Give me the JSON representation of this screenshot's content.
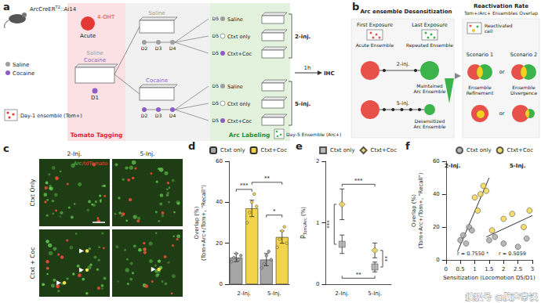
{
  "panels": {
    "a": {
      "letter": "a",
      "mouse": {
        "name": "ArcCreER",
        "superscript": "T2",
        "suffix": "::Ai14"
      },
      "drug": "4-OHT",
      "drug_note": "Acute",
      "legend": [
        {
          "label": "Saline",
          "color": "#9e9e9e"
        },
        {
          "label": "Cocaine",
          "color": "#8e5ec7"
        }
      ],
      "day1": {
        "day": "D1",
        "treatments": [
          "Saline",
          "Cocaine"
        ],
        "injection": "Cocaine"
      },
      "branches": [
        {
          "treatment": "Saline",
          "days": [
            "D2",
            "D3",
            "D4"
          ],
          "test_day": "D5",
          "group": "2-inj.",
          "tests": [
            {
              "label": "Saline",
              "injection": "Saline"
            },
            {
              "label": "Ctxt only",
              "injection": null
            },
            {
              "label": "Ctxt+Coc",
              "injection": "Cocaine"
            }
          ]
        },
        {
          "treatment": "Cocaine",
          "days": [
            "D2",
            "D3",
            "D4"
          ],
          "test_day": "D5",
          "group": "5-inj.",
          "tests": [
            {
              "label": "Saline",
              "injection": "Saline"
            },
            {
              "label": "Ctxt only",
              "injection": null
            },
            {
              "label": "Ctxt+Coc",
              "injection": "Cocaine"
            }
          ]
        }
      ],
      "delay": "1h",
      "assay": "IHC",
      "tagging": "Tomato Tagging",
      "labeling": "Arc Labeling",
      "day1_ensemble": "Day-1 ensemble (Tom+)",
      "day5_ensemble": "Day-5 Ensemble (Arc+)"
    },
    "b": {
      "letter": "b",
      "title": "Arc ensemble Desensitization",
      "first": {
        "label": "First Exposure",
        "ensemble": "Acute Ensemble"
      },
      "last": {
        "label": "Last Exposure",
        "ensemble": "Repeated Ensemble"
      },
      "rows": [
        {
          "group": "2-inj.",
          "injections": 2,
          "outcome": [
            "Maintained",
            "Arc Ensemble"
          ]
        },
        {
          "group": "5-inj.",
          "injections": 5,
          "outcome": [
            "Desensitized",
            "Arc Ensemble"
          ]
        }
      ],
      "right_title": "Reactivation Rate",
      "right_subtitle": "Tom+/Arc+ Ensembles Overlap",
      "reactivated": [
        "Reactivated",
        "cell"
      ],
      "scenarios": [
        "Scenario 1",
        "Scenario 2"
      ],
      "separator": "or",
      "outcomes": [
        [
          "Ensemble",
          "Refinement"
        ],
        [
          "Ensemble",
          "Divergence"
        ]
      ]
    },
    "c": {
      "letter": "c",
      "columns": [
        "2-Inj.",
        "5-Inj."
      ],
      "rows": [
        "Ctxt Only",
        "Ctxt + Coc"
      ],
      "stain": [
        {
          "text": "Arc",
          "color": "#4cd137"
        },
        {
          "text": "/tdTomato",
          "color": "#ff3b30"
        }
      ]
    }
  },
  "chart_data": [
    {
      "letter": "d",
      "type": "bar",
      "categories": [
        "2-Inj.",
        "5-Inj."
      ],
      "series": [
        {
          "name": "Ctxt only",
          "color": "#a6a6a6",
          "values": [
            13,
            12
          ],
          "errors": [
            2,
            3
          ],
          "points": [
            [
              11,
              13,
              15,
              12,
              14
            ],
            [
              8,
              10,
              14,
              16,
              12
            ]
          ]
        },
        {
          "name": "Ctxt+Coc",
          "color": "#f3d34a",
          "values": [
            37,
            23
          ],
          "errors": [
            4,
            3
          ],
          "points": [
            [
              30,
              35,
              40,
              44,
              38
            ],
            [
              18,
              22,
              26,
              28,
              20
            ]
          ]
        }
      ],
      "ylabel": [
        "Overlap (%)",
        "(Tom+Arc+/Tom+, \"Recall\")"
      ],
      "ylim": [
        0,
        60
      ],
      "yticks": [
        0,
        20,
        40,
        60
      ],
      "legend": "top-right",
      "comparisons": [
        {
          "between": [
            [
              "Ctxt only",
              "2-Inj."
            ],
            [
              "Ctxt+Coc",
              "2-Inj."
            ]
          ],
          "label": "***"
        },
        {
          "between": [
            [
              "Ctxt+Coc",
              "2-Inj."
            ],
            [
              "Ctxt+Coc",
              "5-Inj."
            ]
          ],
          "label": "**"
        },
        {
          "between": [
            [
              "Ctxt only",
              "5-Inj."
            ],
            [
              "Ctxt+Coc",
              "5-Inj."
            ]
          ],
          "label": "*"
        }
      ]
    },
    {
      "letter": "e",
      "type": "scatter",
      "categories": [
        "2-Inj.",
        "5-Inj."
      ],
      "series": [
        {
          "name": "Ctxt only",
          "color": "#a6a6a6",
          "marker": "square",
          "values": [
            0.65,
            0.28
          ],
          "errors": [
            0.15,
            0.08
          ]
        },
        {
          "name": "Ctxt+Coc",
          "color": "#f3d34a",
          "marker": "diamond",
          "values": [
            1.3,
            0.55
          ],
          "errors": [
            0.25,
            0.12
          ]
        }
      ],
      "ylabel": {
        "main": "P",
        "sub": "Tom/Arc",
        "unit": "(%)"
      },
      "ylim": [
        0,
        2
      ],
      "yticks": [
        0,
        1,
        2
      ],
      "legend": "top-right",
      "comparisons": [
        {
          "between": [
            [
              "Ctxt only",
              "2-Inj."
            ],
            [
              "Ctxt+Coc",
              "2-Inj."
            ]
          ],
          "label": "***"
        },
        {
          "between": [
            [
              "Ctxt+Coc",
              "2-Inj."
            ],
            [
              "Ctxt+Coc",
              "5-Inj."
            ]
          ],
          "label": "***"
        },
        {
          "between": [
            [
              "Ctxt only",
              "2-Inj."
            ],
            [
              "Ctxt only",
              "5-Inj."
            ]
          ],
          "label": "**"
        },
        {
          "between": [
            [
              "Ctxt only",
              "5-Inj."
            ],
            [
              "Ctxt+Coc",
              "5-Inj."
            ]
          ],
          "label": "**"
        }
      ]
    },
    {
      "letter": "f",
      "type": "scatter",
      "series": [
        {
          "name": "Ctxt only",
          "color": "#a6a6a6",
          "marker": "circle",
          "x": [
            0.5,
            0.6,
            0.7,
            0.8,
            0.9,
            1.5,
            1.7,
            2.0,
            2.5,
            2.8
          ],
          "y": [
            12,
            15,
            10,
            20,
            18,
            12,
            14,
            10,
            8,
            13
          ]
        },
        {
          "name": "Ctxt+Coc",
          "color": "#f3d34a",
          "marker": "circle",
          "x": [
            1.0,
            1.1,
            1.2,
            1.3,
            1.4,
            1.6,
            2.0,
            2.3,
            2.7,
            2.9
          ],
          "y": [
            38,
            30,
            40,
            45,
            42,
            18,
            25,
            28,
            20,
            30
          ]
        }
      ],
      "fits": [
        {
          "group": "2-Inj.",
          "x": [
            0.4,
            1.5
          ],
          "y": [
            5,
            50
          ],
          "r_label": "r = 0.7550 *"
        },
        {
          "group": "5-Inj.",
          "x": [
            1.4,
            3.0
          ],
          "y": [
            14,
            27
          ],
          "r_label": "r = 0.5059"
        }
      ],
      "xlabel": "Sensitization (Locomotion D5/D1)",
      "ylabel": [
        "Overlap (%)",
        "(Tom+Arc+/Tom+, \"Recall\")"
      ],
      "xlim": [
        0,
        3
      ],
      "xticks": [
        0,
        0.5,
        1,
        1.5,
        2,
        2.5,
        3
      ],
      "ylim": [
        0,
        60
      ],
      "yticks": [
        0,
        20,
        40,
        60
      ],
      "legend": "top-right"
    }
  ],
  "watermark": "搜狐号 @脑声常谈"
}
